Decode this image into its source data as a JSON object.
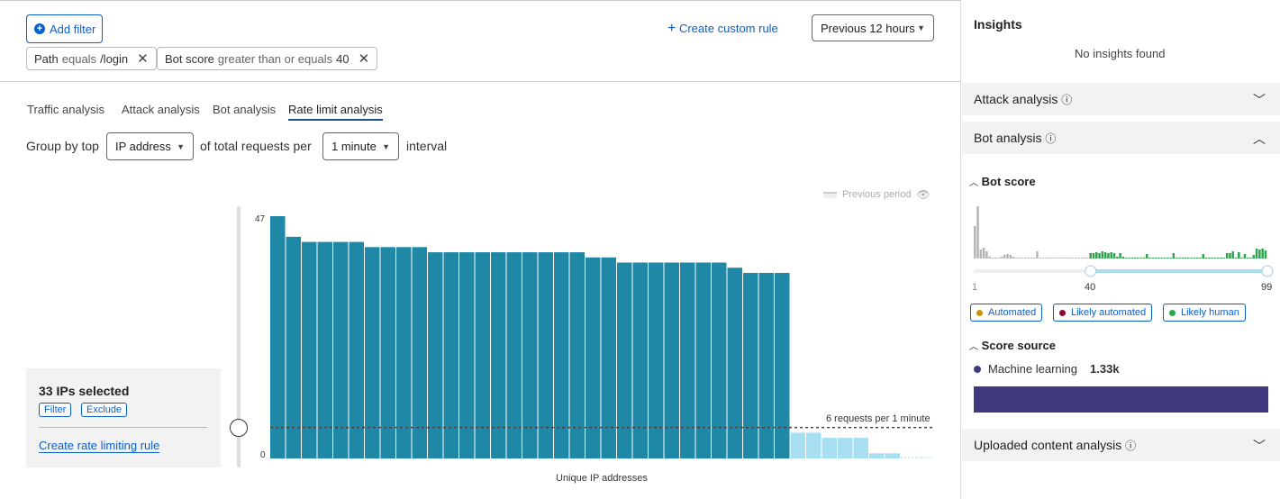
{
  "toolbar": {
    "add_filter": "Add filter",
    "create_custom_rule": "Create custom rule",
    "time_range": "Previous 12 hours"
  },
  "filters": [
    {
      "field": "Path",
      "operator": "equals",
      "value": "/login"
    },
    {
      "field": "Bot score",
      "operator": "greater than or equals",
      "value": "40"
    }
  ],
  "tabs": [
    {
      "label": "Traffic analysis"
    },
    {
      "label": "Attack analysis"
    },
    {
      "label": "Bot analysis"
    },
    {
      "label": "Rate limit analysis",
      "active": true
    }
  ],
  "group_by": {
    "prefix": "Group by top",
    "field": "IP address",
    "middle": "of total requests per",
    "interval": "1 minute",
    "suffix": "interval"
  },
  "chart_data": {
    "type": "bar",
    "xlabel": "Unique IP addresses",
    "ylim": [
      0,
      47
    ],
    "yticks": [
      "47",
      "0"
    ],
    "legend": "Previous period",
    "threshold": {
      "value": 6,
      "label": "6 requests per 1 minute"
    },
    "values": [
      47,
      43,
      42,
      42,
      42,
      42,
      41,
      41,
      41,
      41,
      40,
      40,
      40,
      40,
      40,
      40,
      40,
      40,
      40,
      40,
      39,
      39,
      38,
      38,
      38,
      38,
      38,
      38,
      38,
      37,
      36,
      36,
      36,
      5,
      5,
      4,
      4,
      4,
      1,
      1,
      0,
      0
    ],
    "selected_count": 33,
    "colors": {
      "selected": "#1e88a6",
      "unselected": "#a8dff0"
    }
  },
  "selection": {
    "title": "33 IPs selected",
    "filter": "Filter",
    "exclude": "Exclude",
    "create_rule": "Create rate limiting rule"
  },
  "insights": {
    "title": "Insights",
    "empty": "No insights found",
    "attack_analysis": "Attack analysis",
    "bot_analysis": "Bot analysis",
    "uploaded": "Uploaded content analysis",
    "bot_score": {
      "title": "Bot score",
      "min": "1",
      "selected": "40",
      "max": "99",
      "histogram": [
        36,
        58,
        10,
        12,
        8,
        2,
        1,
        1,
        1,
        2,
        4,
        5,
        4,
        2,
        1,
        1,
        1,
        1,
        1,
        1,
        1,
        8,
        1,
        1,
        1,
        1,
        1,
        1,
        1,
        1,
        1,
        1,
        1,
        1,
        1,
        1,
        1,
        1,
        1,
        6,
        6,
        7,
        6,
        8,
        7,
        6,
        7,
        6,
        2,
        6,
        2,
        1,
        1,
        1,
        1,
        1,
        1,
        1,
        5,
        1,
        1,
        1,
        1,
        1,
        1,
        1,
        1,
        6,
        1,
        1,
        1,
        1,
        1,
        1,
        1,
        1,
        1,
        5,
        1,
        1,
        1,
        1,
        1,
        1,
        1,
        6,
        6,
        8,
        1,
        7,
        1,
        5,
        1,
        1,
        4,
        11,
        10,
        11,
        9
      ],
      "legend": [
        {
          "label": "Automated",
          "color": "#c9930e"
        },
        {
          "label": "Likely automated",
          "color": "#8a0a37"
        },
        {
          "label": "Likely human",
          "color": "#2ea44f"
        }
      ]
    },
    "score_source": {
      "title": "Score source",
      "label": "Machine learning",
      "value": "1.33k",
      "color": "#3f3a7f"
    }
  }
}
